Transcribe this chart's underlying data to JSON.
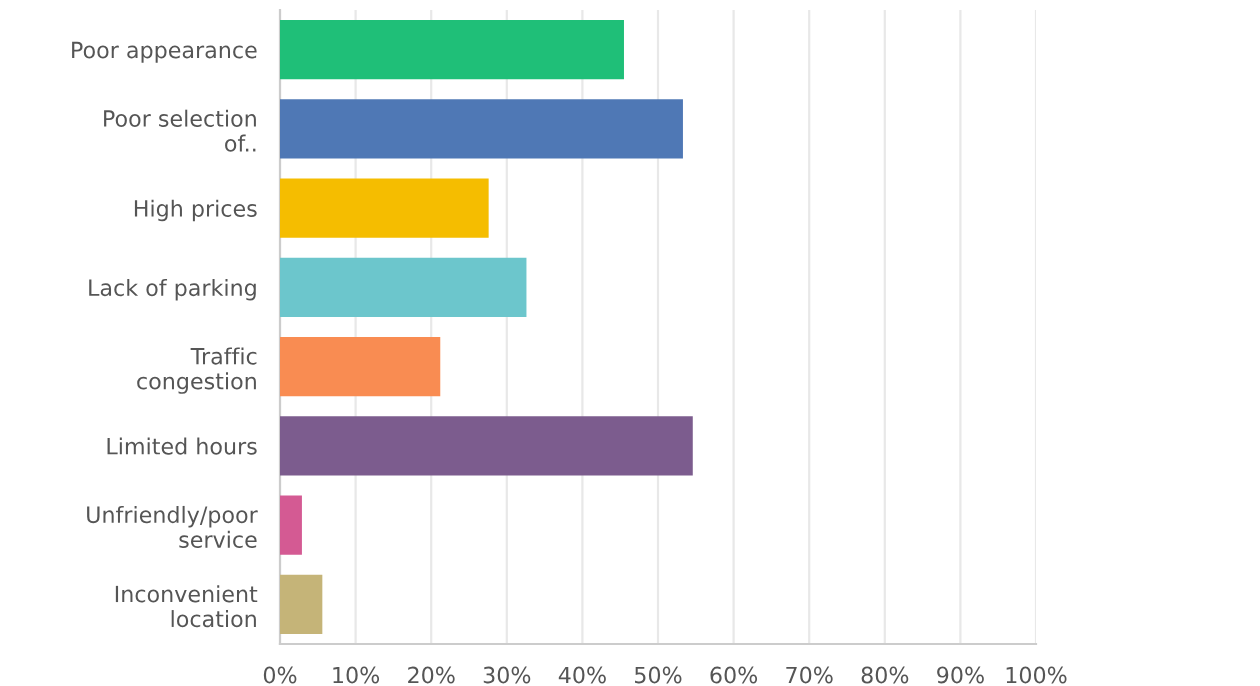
{
  "chart_data": {
    "type": "bar",
    "orientation": "horizontal",
    "categories": [
      "Poor appearance",
      "Poor selection\nof..",
      "High prices",
      "Lack of parking",
      "Traffic\ncongestion",
      "Limited hours",
      "Unfriendly/poor\nservice",
      "Inconvenient\nlocation"
    ],
    "values": [
      45.5,
      53.3,
      27.6,
      32.6,
      21.2,
      54.6,
      2.9,
      5.6
    ],
    "colors": [
      "#1fbf78",
      "#4f78b5",
      "#f5bd00",
      "#6cc6cc",
      "#f98c52",
      "#7c5c8e",
      "#d45a93",
      "#c5b478"
    ],
    "xlim": [
      0,
      100
    ],
    "xticks": [
      {
        "value": 0,
        "label": "0%"
      },
      {
        "value": 10,
        "label": "10%"
      },
      {
        "value": 20,
        "label": "20%"
      },
      {
        "value": 30,
        "label": "30%"
      },
      {
        "value": 40,
        "label": "40%"
      },
      {
        "value": 50,
        "label": "50%"
      },
      {
        "value": 60,
        "label": "60%"
      },
      {
        "value": 70,
        "label": "70%"
      },
      {
        "value": 80,
        "label": "80%"
      },
      {
        "value": 90,
        "label": "90%"
      },
      {
        "value": 100,
        "label": "100%"
      }
    ],
    "grid": "x",
    "legend": false
  }
}
